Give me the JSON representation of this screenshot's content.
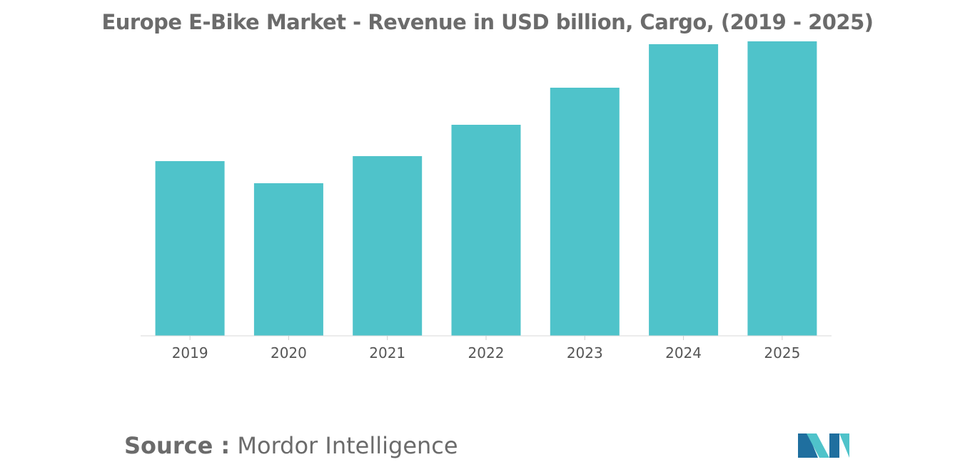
{
  "chart_data": {
    "type": "bar",
    "title": "Europe E-Bike Market - Revenue in USD billion, Cargo, (2019 - 2025)",
    "categories": [
      "2019",
      "2020",
      "2021",
      "2022",
      "2023",
      "2024",
      "2025"
    ],
    "values": [
      2.45,
      2.14,
      2.52,
      2.96,
      3.48,
      4.09,
      4.13
    ],
    "xlabel": "",
    "ylabel": "",
    "ylim": [
      0,
      4.13
    ],
    "grid": false,
    "legend": "none",
    "bar_color": "#4fc3ca"
  },
  "footer": {
    "source_label": "Source :",
    "source_name": "Mordor Intelligence"
  },
  "logo": {
    "icon": "mordor-intelligence-logo-icon",
    "colors": [
      "#1f6f9f",
      "#4fc3ca"
    ]
  }
}
